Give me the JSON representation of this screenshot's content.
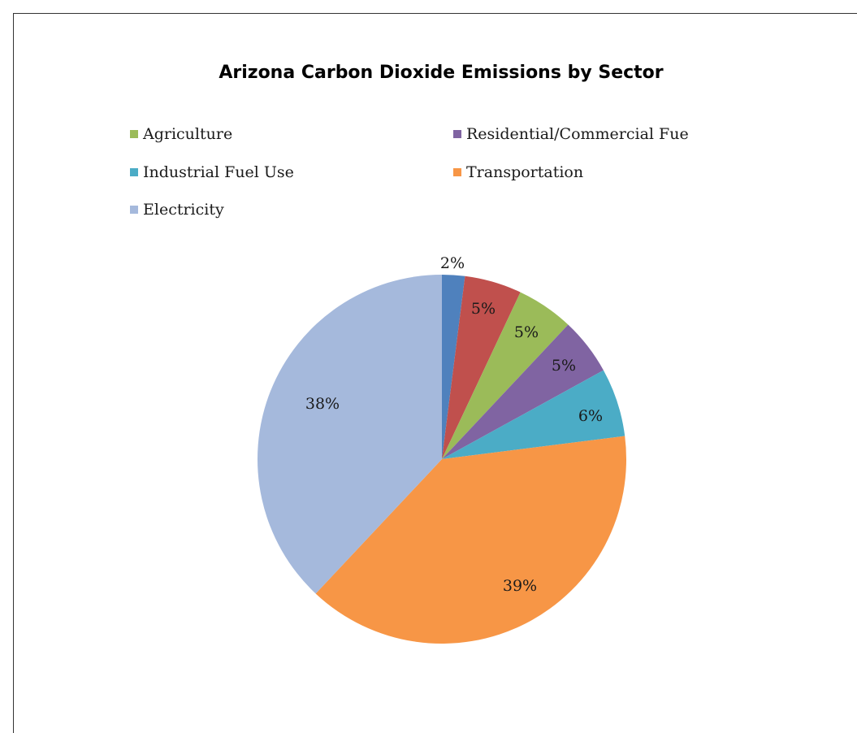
{
  "chart_data": {
    "type": "pie",
    "title": "Arizona Carbon Dioxide Emissions by Sector",
    "slices": [
      {
        "value": 2,
        "label": "2%",
        "color": "#4f81bd"
      },
      {
        "value": 5,
        "label": "5%",
        "color": "#c0504d"
      },
      {
        "value": 5,
        "label": "5%",
        "color": "#9bbb59",
        "legend": "Agriculture"
      },
      {
        "value": 5,
        "label": "5%",
        "color": "#8064a2",
        "legend": "Residential/Commercial Fue"
      },
      {
        "value": 6,
        "label": "6%",
        "color": "#4bacc6",
        "legend": "Industrial Fuel Use"
      },
      {
        "value": 39,
        "label": "39%",
        "color": "#f79646",
        "legend": "Transportation"
      },
      {
        "value": 38,
        "label": "38%",
        "color": "#a5b9dc",
        "legend": "Electricity"
      }
    ],
    "legend": [
      {
        "label": "Agriculture",
        "color": "#9bbb59"
      },
      {
        "label": "Residential/Commercial Fue",
        "color": "#8064a2"
      },
      {
        "label": "Industrial Fuel Use",
        "color": "#4bacc6"
      },
      {
        "label": "Transportation",
        "color": "#f79646"
      },
      {
        "label": "Electricity",
        "color": "#a5b9dc"
      }
    ],
    "legend_position": "top"
  }
}
